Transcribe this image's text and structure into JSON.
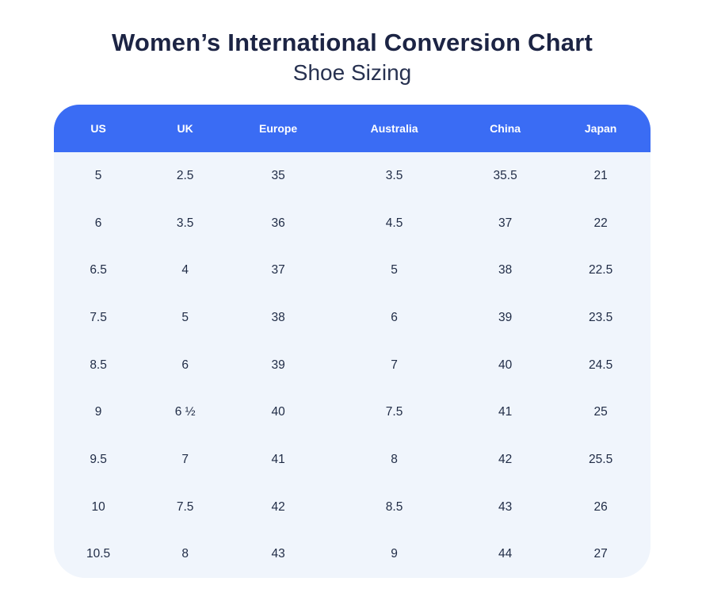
{
  "page": {
    "title": "Women’s International Conversion Chart",
    "subtitle": "Shoe Sizing"
  },
  "chart_data": {
    "type": "table",
    "title": "Women’s International Conversion Chart",
    "subtitle": "Shoe Sizing",
    "columns": [
      "US",
      "UK",
      "Europe",
      "Australia",
      "China",
      "Japan"
    ],
    "rows": [
      [
        "5",
        "2.5",
        "35",
        "3.5",
        "35.5",
        "21"
      ],
      [
        "6",
        "3.5",
        "36",
        "4.5",
        "37",
        "22"
      ],
      [
        "6.5",
        "4",
        "37",
        "5",
        "38",
        "22.5"
      ],
      [
        "7.5",
        "5",
        "38",
        "6",
        "39",
        "23.5"
      ],
      [
        "8.5",
        "6",
        "39",
        "7",
        "40",
        "24.5"
      ],
      [
        "9",
        "6 ½",
        "40",
        "7.5",
        "41",
        "25"
      ],
      [
        "9.5",
        "7",
        "41",
        "8",
        "42",
        "25.5"
      ],
      [
        "10",
        "7.5",
        "42",
        "8.5",
        "43",
        "26"
      ],
      [
        "10.5",
        "8",
        "43",
        "9",
        "44",
        "27"
      ]
    ]
  },
  "colors": {
    "header_bg": "#3a6cf4",
    "header_text": "#ffffff",
    "body_bg": "#f0f5fc",
    "title_text": "#1c2444",
    "subtitle_text": "#273150",
    "cell_text": "#1f2b45"
  }
}
